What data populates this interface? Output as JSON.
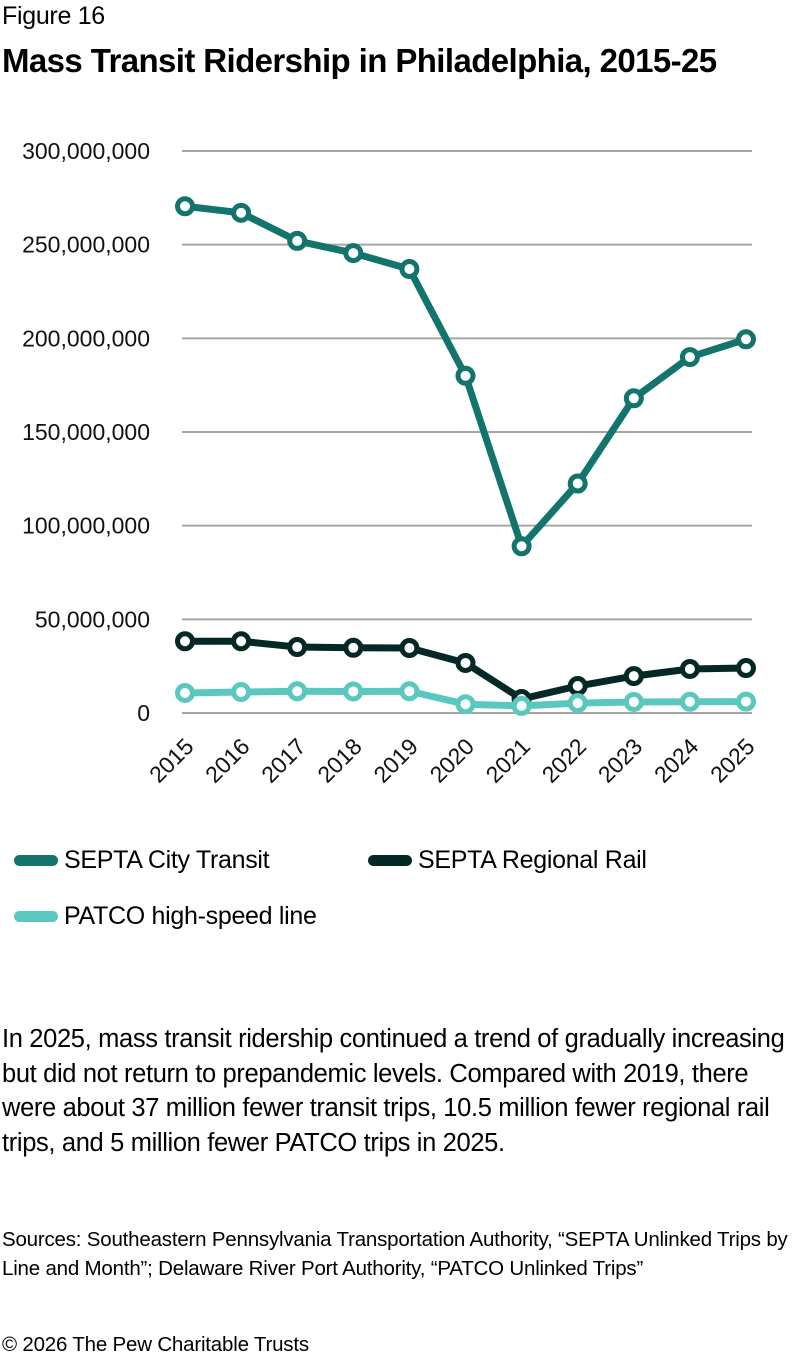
{
  "figure_label": "Figure 16",
  "title": "Mass Transit Ridership in Philadelphia, 2015-25",
  "chart_data": {
    "type": "line",
    "title": "Mass Transit Ridership in Philadelphia, 2015-25",
    "xlabel": "",
    "ylabel": "",
    "x": [
      "2015",
      "2016",
      "2017",
      "2018",
      "2019",
      "2020",
      "2021",
      "2022",
      "2023",
      "2024",
      "2025"
    ],
    "ylim": [
      0,
      300000000
    ],
    "yticks": [
      0,
      50000000,
      100000000,
      150000000,
      200000000,
      250000000,
      300000000
    ],
    "ytick_labels": [
      "0",
      "50,000,000",
      "100,000,000",
      "150,000,000",
      "200,000,000",
      "250,000,000",
      "300,000,000"
    ],
    "grid": "horizontal",
    "legend_position": "bottom",
    "series": [
      {
        "name": "SEPTA City Transit",
        "color": "#13736d",
        "values": [
          270500000,
          267000000,
          252000000,
          245500000,
          237000000,
          180000000,
          89000000,
          122500000,
          168000000,
          190000000,
          199500000
        ]
      },
      {
        "name": "SEPTA Regional Rail",
        "color": "#032826",
        "values": [
          38300000,
          38300000,
          35200000,
          34800000,
          34700000,
          26700000,
          7500000,
          14400000,
          19700000,
          23500000,
          24000000
        ]
      },
      {
        "name": "PATCO high-speed line",
        "color": "#5bc8bf",
        "values": [
          10700000,
          11200000,
          11600000,
          11500000,
          11600000,
          4700000,
          3800000,
          5300000,
          5900000,
          6000000,
          6100000
        ]
      }
    ]
  },
  "caption": "In 2025, mass transit ridership continued a trend of gradually increasing but did not return to prepandemic levels. Compared with 2019, there were about 37 million fewer transit trips, 10.5 million fewer regional rail trips, and 5 million fewer PATCO trips in 2025.",
  "sources": "Sources: Southeastern Pennsylvania Transportation Authority, “SEPTA Unlinked Trips by Line and Month”; Delaware River Port Authority, “PATCO Unlinked Trips”",
  "copyright": "© 2026 The Pew Charitable Trusts"
}
